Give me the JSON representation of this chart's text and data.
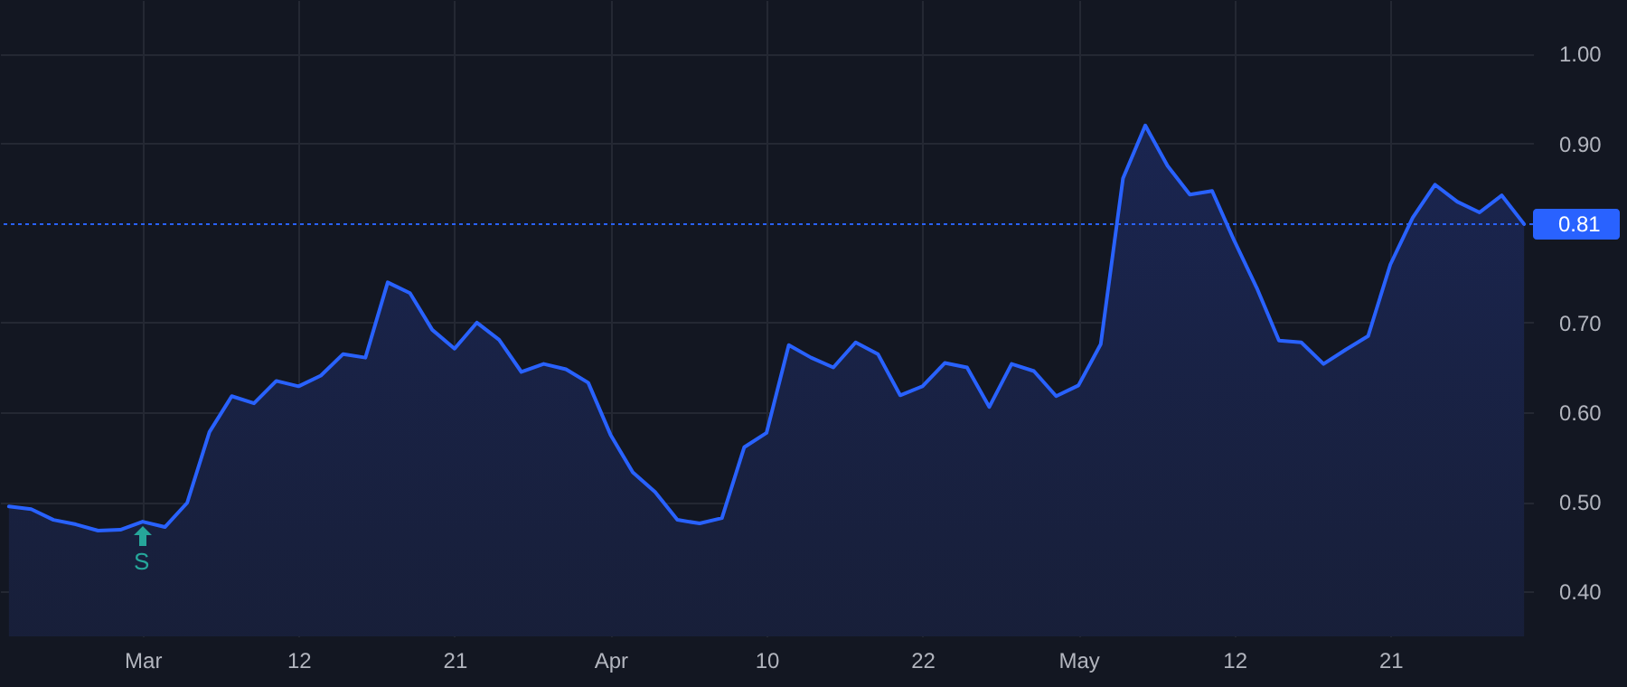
{
  "chart_data": {
    "type": "area",
    "color": "#2962ff",
    "categories": [
      null,
      null,
      null,
      null,
      null,
      null,
      "Mar",
      null,
      null,
      null,
      null,
      null,
      null,
      "12",
      null,
      null,
      null,
      null,
      null,
      null,
      "21",
      null,
      null,
      null,
      null,
      null,
      null,
      "Apr",
      null,
      null,
      null,
      null,
      null,
      null,
      "10",
      null,
      null,
      null,
      null,
      null,
      null,
      "22",
      null,
      null,
      null,
      null,
      null,
      null,
      "May",
      null,
      null,
      null,
      null,
      null,
      null,
      "12",
      null,
      null,
      null,
      null,
      null,
      null,
      "21",
      null,
      null,
      null,
      null,
      null,
      null
    ],
    "values": [
      0.495,
      0.492,
      0.48,
      0.475,
      0.468,
      0.469,
      0.478,
      0.472,
      0.499,
      0.578,
      0.618,
      0.61,
      0.635,
      0.629,
      0.641,
      0.665,
      0.661,
      0.745,
      0.733,
      0.692,
      0.671,
      0.7,
      0.681,
      0.645,
      0.654,
      0.648,
      0.633,
      0.575,
      0.533,
      0.511,
      0.48,
      0.476,
      0.482,
      0.561,
      0.577,
      0.675,
      0.661,
      0.65,
      0.678,
      0.665,
      0.619,
      0.629,
      0.655,
      0.65,
      0.606,
      0.654,
      0.646,
      0.618,
      0.63,
      0.676,
      0.861,
      0.92,
      0.875,
      0.843,
      0.847,
      0.791,
      0.739,
      0.68,
      0.678,
      0.654,
      0.67,
      0.685,
      0.765,
      0.817,
      0.854,
      0.835,
      0.823,
      0.842,
      0.81
    ],
    "ylim": [
      0.35,
      1.06
    ],
    "yticks": [
      {
        "value": 0.4,
        "label": "0.40"
      },
      {
        "value": 0.5,
        "label": "0.50"
      },
      {
        "value": 0.6,
        "label": "0.60"
      },
      {
        "value": 0.7,
        "label": "0.70"
      },
      {
        "value": 0.9,
        "label": "0.90"
      },
      {
        "value": 1.0,
        "label": "1.00"
      }
    ],
    "grid": true,
    "ref_lines": [
      {
        "axis": "y",
        "value": 0.81,
        "label": "0.81",
        "color": "#2962ff",
        "line_style": "dotted"
      }
    ],
    "annotations": [
      "S"
    ]
  }
}
